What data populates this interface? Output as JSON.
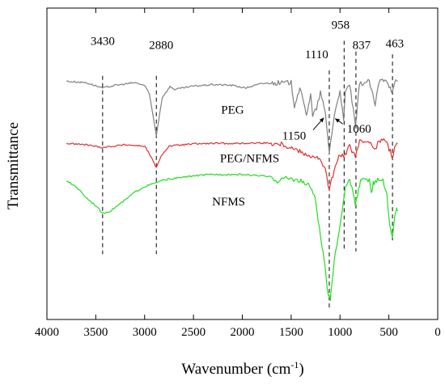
{
  "chart_data": {
    "type": "line",
    "title": "",
    "xlabel": "Wavenumber (cm",
    "xlabel_sup": "-1",
    "xlabel_close": ")",
    "ylabel": "Transmittance",
    "xlim": [
      4000,
      0
    ],
    "x_ticks": [
      4000,
      3500,
      3000,
      2500,
      2000,
      1500,
      1000,
      500,
      0
    ],
    "x_tick_labels": [
      "4000",
      "3500",
      "3000",
      "2500",
      "2000",
      "1500",
      "1000",
      "500",
      "0"
    ],
    "y_ticks_shown": false,
    "y_unit": "relative transmittance (no numeric scale shown)",
    "grid": false,
    "series": [
      {
        "name": "PEG",
        "color": "#808080",
        "baseline": 0.78,
        "points": [
          [
            3800,
            0.78
          ],
          [
            3600,
            0.775
          ],
          [
            3430,
            0.755
          ],
          [
            3300,
            0.765
          ],
          [
            3100,
            0.775
          ],
          [
            3000,
            0.765
          ],
          [
            2950,
            0.73
          ],
          [
            2880,
            0.58
          ],
          [
            2820,
            0.72
          ],
          [
            2740,
            0.76
          ],
          [
            2690,
            0.75
          ],
          [
            2500,
            0.762
          ],
          [
            2300,
            0.768
          ],
          [
            2100,
            0.765
          ],
          [
            1970,
            0.755
          ],
          [
            1800,
            0.772
          ],
          [
            1500,
            0.775
          ],
          [
            1467,
            0.69
          ],
          [
            1412,
            0.755
          ],
          [
            1360,
            0.68
          ],
          [
            1343,
            0.66
          ],
          [
            1300,
            0.73
          ],
          [
            1280,
            0.65
          ],
          [
            1240,
            0.68
          ],
          [
            1200,
            0.74
          ],
          [
            1150,
            0.66
          ],
          [
            1110,
            0.52
          ],
          [
            1060,
            0.65
          ],
          [
            1000,
            0.75
          ],
          [
            963,
            0.63
          ],
          [
            945,
            0.74
          ],
          [
            900,
            0.77
          ],
          [
            842,
            0.61
          ],
          [
            800,
            0.77
          ],
          [
            700,
            0.78
          ],
          [
            640,
            0.69
          ],
          [
            600,
            0.78
          ],
          [
            530,
            0.79
          ],
          [
            463,
            0.74
          ],
          [
            430,
            0.78
          ],
          [
            410,
            0.78
          ]
        ]
      },
      {
        "name": "PEG/NFMS",
        "color": "#e03030",
        "baseline": 0.55,
        "points": [
          [
            3800,
            0.55
          ],
          [
            3600,
            0.545
          ],
          [
            3430,
            0.535
          ],
          [
            3200,
            0.545
          ],
          [
            3000,
            0.54
          ],
          [
            2950,
            0.51
          ],
          [
            2880,
            0.46
          ],
          [
            2820,
            0.51
          ],
          [
            2750,
            0.54
          ],
          [
            2500,
            0.548
          ],
          [
            2300,
            0.55
          ],
          [
            2000,
            0.55
          ],
          [
            1800,
            0.552
          ],
          [
            1600,
            0.548
          ],
          [
            1470,
            0.53
          ],
          [
            1343,
            0.51
          ],
          [
            1280,
            0.5
          ],
          [
            1200,
            0.49
          ],
          [
            1150,
            0.45
          ],
          [
            1110,
            0.38
          ],
          [
            1060,
            0.45
          ],
          [
            1000,
            0.51
          ],
          [
            963,
            0.5
          ],
          [
            900,
            0.54
          ],
          [
            842,
            0.5
          ],
          [
            800,
            0.555
          ],
          [
            700,
            0.56
          ],
          [
            640,
            0.53
          ],
          [
            600,
            0.56
          ],
          [
            530,
            0.56
          ],
          [
            463,
            0.5
          ],
          [
            430,
            0.55
          ],
          [
            410,
            0.55
          ]
        ]
      },
      {
        "name": "NFMS",
        "color": "#22dd22",
        "baseline": 0.42,
        "points": [
          [
            3800,
            0.41
          ],
          [
            3700,
            0.39
          ],
          [
            3600,
            0.35
          ],
          [
            3500,
            0.32
          ],
          [
            3430,
            0.29
          ],
          [
            3350,
            0.3
          ],
          [
            3200,
            0.34
          ],
          [
            3100,
            0.37
          ],
          [
            3000,
            0.39
          ],
          [
            2800,
            0.415
          ],
          [
            2500,
            0.43
          ],
          [
            2300,
            0.435
          ],
          [
            2000,
            0.435
          ],
          [
            1800,
            0.43
          ],
          [
            1700,
            0.425
          ],
          [
            1640,
            0.41
          ],
          [
            1600,
            0.42
          ],
          [
            1500,
            0.42
          ],
          [
            1400,
            0.41
          ],
          [
            1300,
            0.39
          ],
          [
            1250,
            0.34
          ],
          [
            1200,
            0.2
          ],
          [
            1160,
            0.12
          ],
          [
            1130,
            0.0
          ],
          [
            1100,
            -0.03
          ],
          [
            1080,
            0.04
          ],
          [
            1060,
            0.12
          ],
          [
            1020,
            0.2
          ],
          [
            980,
            0.3
          ],
          [
            958,
            0.36
          ],
          [
            930,
            0.4
          ],
          [
            900,
            0.41
          ],
          [
            870,
            0.38
          ],
          [
            842,
            0.32
          ],
          [
            810,
            0.38
          ],
          [
            780,
            0.42
          ],
          [
            740,
            0.41
          ],
          [
            700,
            0.42
          ],
          [
            680,
            0.36
          ],
          [
            660,
            0.4
          ],
          [
            640,
            0.41
          ],
          [
            600,
            0.42
          ],
          [
            560,
            0.41
          ],
          [
            520,
            0.36
          ],
          [
            490,
            0.24
          ],
          [
            463,
            0.2
          ],
          [
            440,
            0.28
          ],
          [
            420,
            0.31
          ],
          [
            410,
            0.3
          ]
        ]
      }
    ],
    "series_labels": [
      {
        "text": "PEG",
        "x": 2100,
        "y": 0.66
      },
      {
        "text": "PEG/NFMS",
        "x": 1925,
        "y": 0.48
      },
      {
        "text": "NFMS",
        "x": 2140,
        "y": 0.32
      }
    ],
    "peak_markers": [
      {
        "label": "3430",
        "x": 3430,
        "from": 0.14,
        "to": 0.8,
        "label_x": 3430,
        "label_y": 0.915
      },
      {
        "label": "2880",
        "x": 2880,
        "from": 0.14,
        "to": 0.8,
        "label_x": 2830,
        "label_y": 0.9
      },
      {
        "label": "1110",
        "x": 1110,
        "from": -0.06,
        "to": 0.82,
        "label_x": 1240,
        "label_y": 0.865
      },
      {
        "label": "958",
        "x": 958,
        "from": 0.15,
        "to": 0.93,
        "label_x": 995,
        "label_y": 0.975
      },
      {
        "label": "837",
        "x": 837,
        "from": 0.15,
        "to": 0.89,
        "label_x": 780,
        "label_y": 0.9
      },
      {
        "label": "463",
        "x": 463,
        "from": 0.18,
        "to": 0.88,
        "label_x": 440,
        "label_y": 0.905
      }
    ],
    "annotations": [
      {
        "label": "1150",
        "label_x": 1470,
        "label_y": 0.565,
        "arrow_from": [
          1275,
          0.6
        ],
        "arrow_to": [
          1165,
          0.645
        ]
      },
      {
        "label": "1060",
        "label_x": 805,
        "label_y": 0.59,
        "arrow_from": [
          970,
          0.622
        ],
        "arrow_to": [
          1050,
          0.642
        ]
      }
    ]
  }
}
